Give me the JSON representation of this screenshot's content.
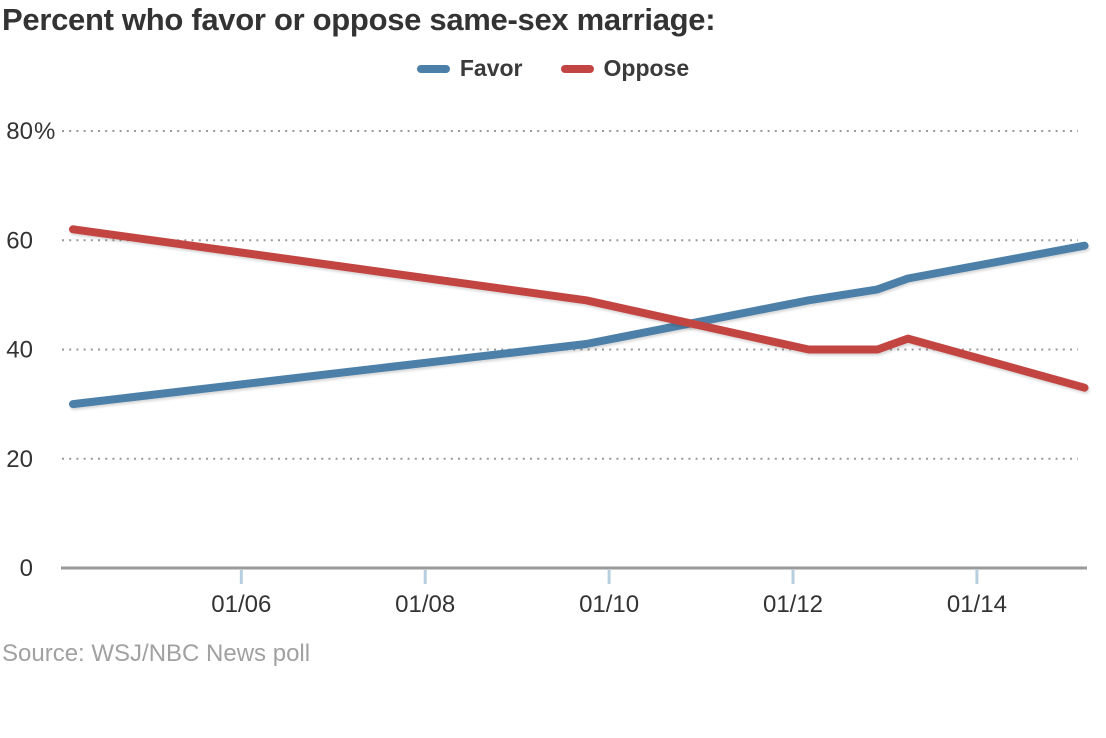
{
  "title": "Percent who favor or oppose same-sex marriage:",
  "source_note": "Source: WSJ/NBC News poll",
  "legend": {
    "items": [
      {
        "label": "Favor",
        "color": "#4d80a9"
      },
      {
        "label": "Oppose",
        "color": "#c34543"
      }
    ]
  },
  "chart_data": {
    "type": "line",
    "title": "Percent who favor or oppose same-sex marriage:",
    "source": "Source: WSJ/NBC News poll",
    "x_unit": "decimal_year",
    "x": [
      2004.17,
      2009.75,
      2012.17,
      2012.92,
      2013.25,
      2015.17
    ],
    "series": [
      {
        "name": "Favor",
        "color": "#4d80a9",
        "values": [
          30,
          41,
          49,
          51,
          53,
          59
        ]
      },
      {
        "name": "Oppose",
        "color": "#c34543",
        "values": [
          62,
          49,
          40,
          40,
          42,
          33
        ]
      }
    ],
    "xticks": [
      {
        "value": 2006,
        "label": "01/06"
      },
      {
        "value": 2008,
        "label": "01/08"
      },
      {
        "value": 2010,
        "label": "01/10"
      },
      {
        "value": 2012,
        "label": "01/12"
      },
      {
        "value": 2014,
        "label": "01/14"
      }
    ],
    "yticks": [
      {
        "value": 80,
        "label": "80%"
      },
      {
        "value": 60,
        "label": "60"
      },
      {
        "value": 40,
        "label": "40"
      },
      {
        "value": 20,
        "label": "20"
      },
      {
        "value": 0,
        "label": "0"
      }
    ],
    "xlim": [
      2004.05,
      2015.23
    ],
    "ylim": [
      0,
      80
    ],
    "grid": "dotted-horizontal",
    "legend_position": "top-center",
    "line_width": 8,
    "colors": {
      "grid_dots": "#999999",
      "axis_line": "#9a9a9a",
      "axis_tick": "#b7cedf",
      "tick_label": "#333333",
      "title": "#333333",
      "source": "#a1a1a1"
    }
  }
}
